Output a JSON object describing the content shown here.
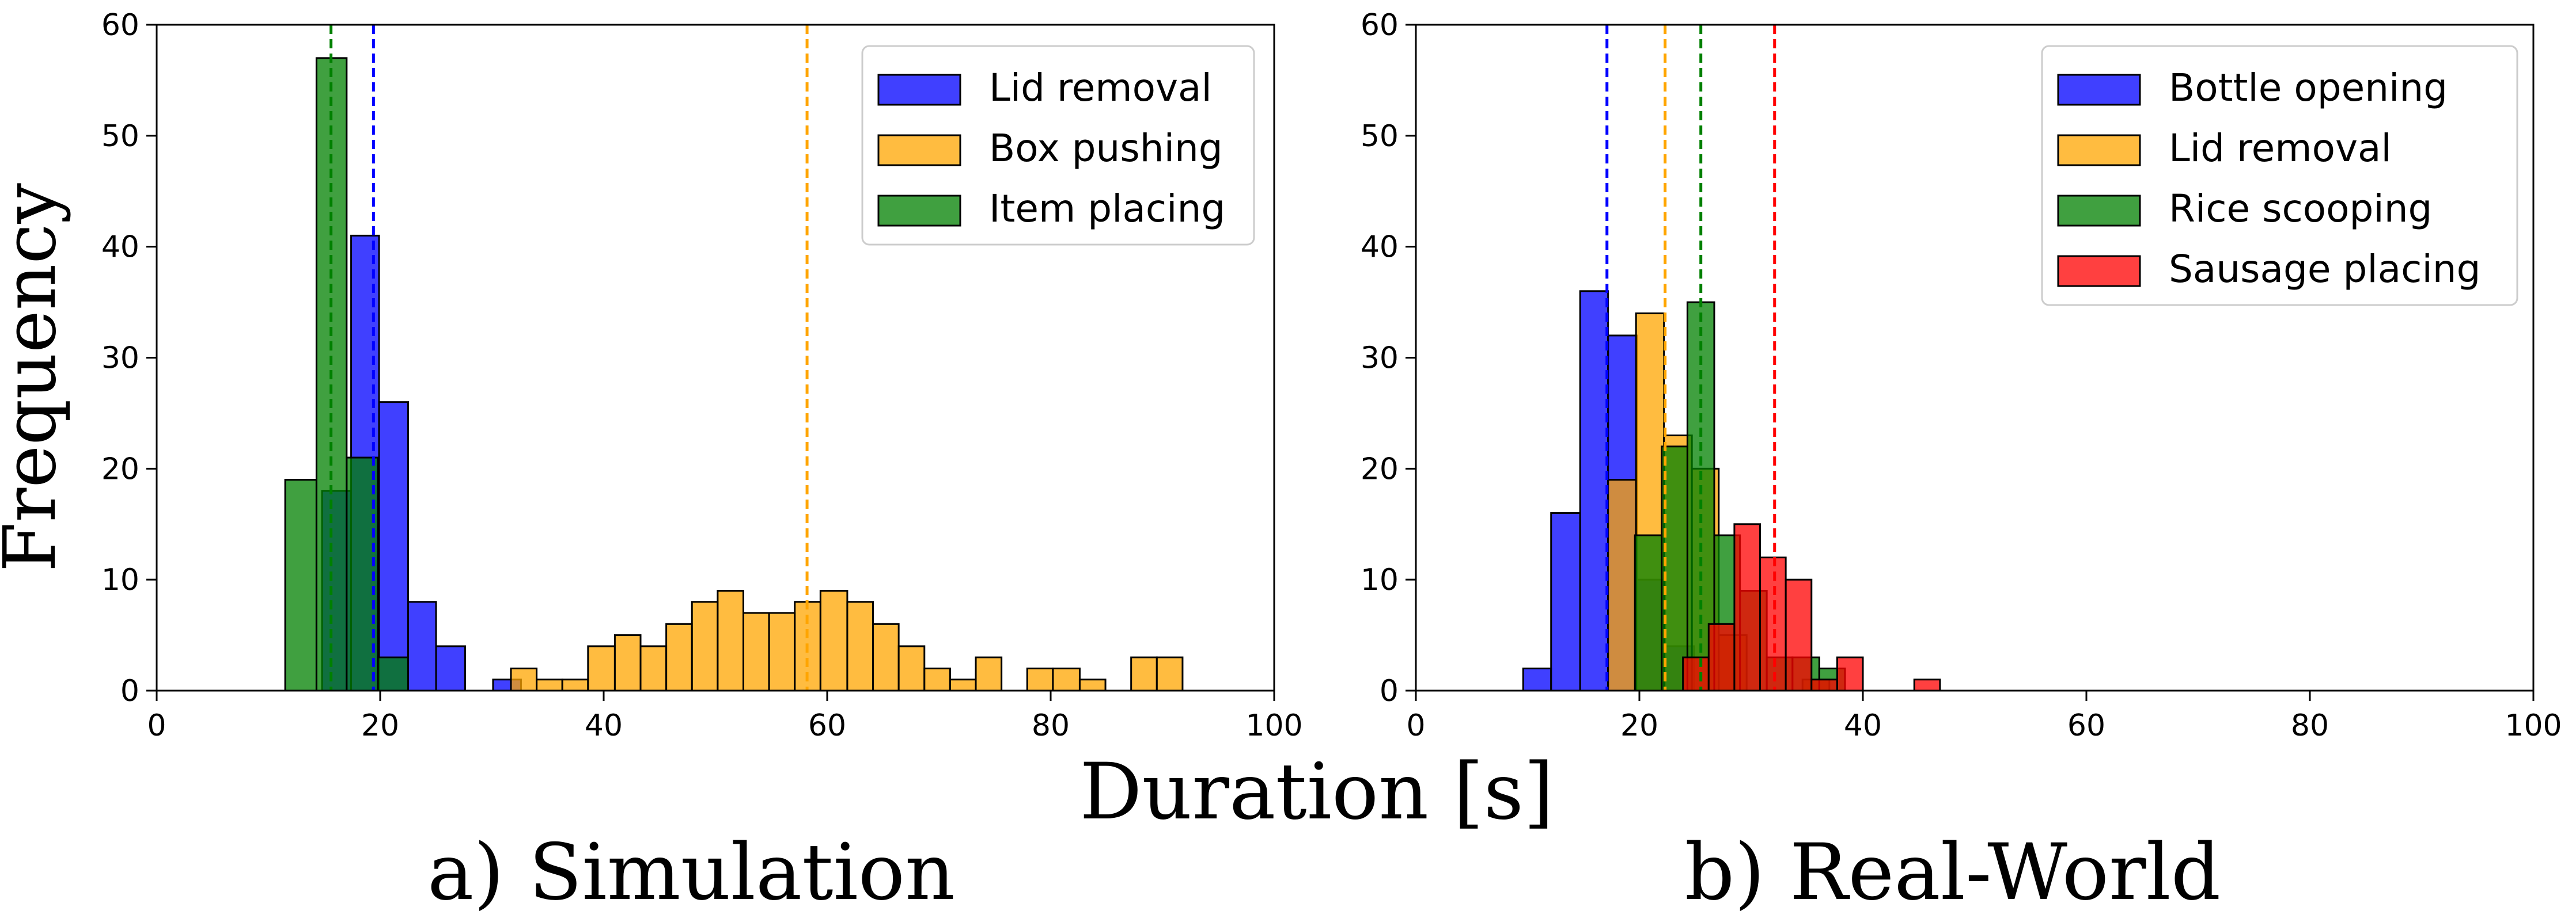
{
  "figure": {
    "shared_ylabel": "Frequency",
    "shared_xlabel": "Duration [s]"
  },
  "chart_data": [
    {
      "type": "histogram",
      "caption": "a) Simulation",
      "xlim": [
        0,
        100
      ],
      "ylim": [
        0,
        60
      ],
      "xticks": [
        0,
        20,
        40,
        60,
        80,
        100
      ],
      "yticks": [
        0,
        10,
        20,
        30,
        40,
        50,
        60
      ],
      "grid": false,
      "legend_position": "upper right",
      "series": [
        {
          "name": "Lid removal",
          "color": "#0000ff",
          "mean_line": 19.4,
          "bins": [
            {
              "x0": 14.8,
              "x1": 17.4,
              "count": 18
            },
            {
              "x0": 17.4,
              "x1": 19.9,
              "count": 41
            },
            {
              "x0": 19.9,
              "x1": 22.5,
              "count": 26
            },
            {
              "x0": 22.5,
              "x1": 25.0,
              "count": 8
            },
            {
              "x0": 25.0,
              "x1": 27.6,
              "count": 4
            },
            {
              "x0": 30.1,
              "x1": 32.6,
              "count": 1
            }
          ]
        },
        {
          "name": "Box pushing",
          "color": "#ffa500",
          "mean_line": 58.2,
          "bins": [
            {
              "x0": 31.7,
              "x1": 34.0,
              "count": 2
            },
            {
              "x0": 34.0,
              "x1": 36.3,
              "count": 1
            },
            {
              "x0": 36.3,
              "x1": 38.6,
              "count": 1
            },
            {
              "x0": 38.6,
              "x1": 41.0,
              "count": 4
            },
            {
              "x0": 41.0,
              "x1": 43.3,
              "count": 5
            },
            {
              "x0": 43.3,
              "x1": 45.6,
              "count": 4
            },
            {
              "x0": 45.6,
              "x1": 47.9,
              "count": 6
            },
            {
              "x0": 47.9,
              "x1": 50.2,
              "count": 8
            },
            {
              "x0": 50.2,
              "x1": 52.5,
              "count": 9
            },
            {
              "x0": 52.5,
              "x1": 54.8,
              "count": 7
            },
            {
              "x0": 54.8,
              "x1": 57.1,
              "count": 7
            },
            {
              "x0": 57.1,
              "x1": 59.4,
              "count": 8
            },
            {
              "x0": 59.4,
              "x1": 61.8,
              "count": 9
            },
            {
              "x0": 61.8,
              "x1": 64.1,
              "count": 8
            },
            {
              "x0": 64.1,
              "x1": 66.4,
              "count": 6
            },
            {
              "x0": 66.4,
              "x1": 68.7,
              "count": 4
            },
            {
              "x0": 68.7,
              "x1": 71.0,
              "count": 2
            },
            {
              "x0": 71.0,
              "x1": 73.3,
              "count": 1
            },
            {
              "x0": 73.3,
              "x1": 75.6,
              "count": 3
            },
            {
              "x0": 75.6,
              "x1": 77.9,
              "count": 0
            },
            {
              "x0": 77.9,
              "x1": 80.2,
              "count": 2
            },
            {
              "x0": 80.2,
              "x1": 82.6,
              "count": 2
            },
            {
              "x0": 82.6,
              "x1": 84.9,
              "count": 1
            },
            {
              "x0": 84.9,
              "x1": 87.2,
              "count": 0
            },
            {
              "x0": 87.2,
              "x1": 89.5,
              "count": 3
            },
            {
              "x0": 89.5,
              "x1": 91.8,
              "count": 3
            }
          ]
        },
        {
          "name": "Item placing",
          "color": "#008000",
          "mean_line": 15.6,
          "bins": [
            {
              "x0": 11.5,
              "x1": 14.3,
              "count": 19
            },
            {
              "x0": 14.3,
              "x1": 17.0,
              "count": 57
            },
            {
              "x0": 17.0,
              "x1": 19.8,
              "count": 21
            },
            {
              "x0": 19.8,
              "x1": 22.5,
              "count": 3
            }
          ]
        }
      ]
    },
    {
      "type": "histogram",
      "caption": "b) Real-World",
      "xlim": [
        0,
        100
      ],
      "ylim": [
        0,
        60
      ],
      "xticks": [
        0,
        20,
        40,
        60,
        80,
        100
      ],
      "yticks": [
        0,
        10,
        20,
        30,
        40,
        50,
        60
      ],
      "grid": false,
      "legend_position": "upper right",
      "series": [
        {
          "name": "Bottle opening",
          "color": "#0000ff",
          "mean_line": 17.1,
          "bins": [
            {
              "x0": 9.6,
              "x1": 12.1,
              "count": 2
            },
            {
              "x0": 12.1,
              "x1": 14.7,
              "count": 16
            },
            {
              "x0": 14.7,
              "x1": 17.2,
              "count": 36
            },
            {
              "x0": 17.2,
              "x1": 19.8,
              "count": 32
            },
            {
              "x0": 19.8,
              "x1": 22.3,
              "count": 10
            },
            {
              "x0": 22.3,
              "x1": 24.9,
              "count": 4
            }
          ]
        },
        {
          "name": "Lid removal",
          "color": "#ffa500",
          "mean_line": 22.3,
          "bins": [
            {
              "x0": 17.2,
              "x1": 19.7,
              "count": 19
            },
            {
              "x0": 19.7,
              "x1": 22.2,
              "count": 34
            },
            {
              "x0": 22.2,
              "x1": 24.7,
              "count": 23
            },
            {
              "x0": 24.7,
              "x1": 27.1,
              "count": 20
            },
            {
              "x0": 27.1,
              "x1": 29.6,
              "count": 5
            },
            {
              "x0": 29.6,
              "x1": 32.1,
              "count": 0
            },
            {
              "x0": 32.1,
              "x1": 34.6,
              "count": 0
            },
            {
              "x0": 34.6,
              "x1": 37.0,
              "count": 1
            }
          ]
        },
        {
          "name": "Rice scooping",
          "color": "#008000",
          "mean_line": 25.5,
          "bins": [
            {
              "x0": 19.6,
              "x1": 22.0,
              "count": 14
            },
            {
              "x0": 22.0,
              "x1": 24.3,
              "count": 22
            },
            {
              "x0": 24.3,
              "x1": 26.7,
              "count": 35
            },
            {
              "x0": 26.7,
              "x1": 29.0,
              "count": 14
            },
            {
              "x0": 29.0,
              "x1": 31.4,
              "count": 9
            },
            {
              "x0": 31.4,
              "x1": 33.7,
              "count": 3
            },
            {
              "x0": 33.7,
              "x1": 36.1,
              "count": 3
            },
            {
              "x0": 36.1,
              "x1": 38.4,
              "count": 2
            }
          ]
        },
        {
          "name": "Sausage placing",
          "color": "#ff0000",
          "mean_line": 32.1,
          "bins": [
            {
              "x0": 23.9,
              "x1": 26.2,
              "count": 3
            },
            {
              "x0": 26.2,
              "x1": 28.5,
              "count": 6
            },
            {
              "x0": 28.5,
              "x1": 30.8,
              "count": 15
            },
            {
              "x0": 30.8,
              "x1": 33.1,
              "count": 12
            },
            {
              "x0": 33.1,
              "x1": 35.4,
              "count": 10
            },
            {
              "x0": 35.4,
              "x1": 37.7,
              "count": 1
            },
            {
              "x0": 37.7,
              "x1": 40.0,
              "count": 3
            },
            {
              "x0": 40.0,
              "x1": 42.3,
              "count": 0
            },
            {
              "x0": 42.3,
              "x1": 44.6,
              "count": 0
            },
            {
              "x0": 44.6,
              "x1": 46.9,
              "count": 1
            }
          ]
        }
      ]
    }
  ]
}
